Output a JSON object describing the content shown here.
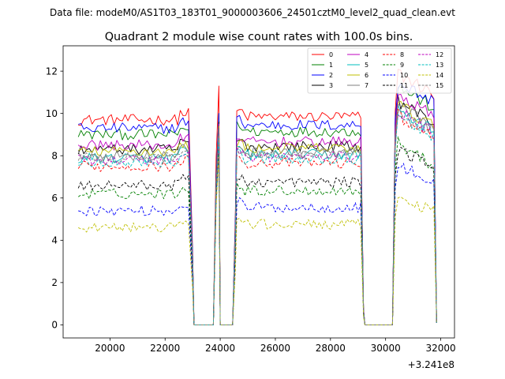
{
  "chart_data": {
    "type": "line",
    "suptitle": "Data file: modeM0/AS1T03_183T01_9000003606_24501cztM0_level2_quad_clean.evt",
    "title": "Quadrant 2 module wise count rates with 100.0s bins.",
    "xlabel": "",
    "ylabel": "",
    "offset_text": "+3.241e8",
    "xlim": [
      18300,
      32500
    ],
    "ylim": [
      -0.62,
      13.2
    ],
    "grid": false,
    "legend_position": "top-right",
    "legend_ncol": 4,
    "x_ticks": [
      20000,
      22000,
      24000,
      26000,
      28000,
      30000,
      32000
    ],
    "x_tick_labels": [
      "20000",
      "22000",
      "24000",
      "26000",
      "28000",
      "30000",
      "32000"
    ],
    "y_ticks": [
      0,
      2,
      4,
      6,
      8,
      10,
      12
    ],
    "y_tick_labels": [
      "0",
      "2",
      "4",
      "6",
      "8",
      "10",
      "12"
    ],
    "segments": [
      {
        "x_start": 18850,
        "x_end": 22850,
        "ramp_end": 23050
      },
      {
        "x_start": 23750,
        "x_end": 23950,
        "ramp_end": 24000
      },
      {
        "x_start": 24600,
        "x_end": 29100,
        "ramp_end": 29250
      },
      {
        "x_start": 30300,
        "x_end": 31750,
        "ramp_end": 31850
      }
    ],
    "zero_gaps": [
      [
        23050,
        23750
      ],
      [
        24000,
        24450
      ],
      [
        29250,
        30250
      ]
    ],
    "series": [
      {
        "name": "0",
        "color": "#ff0000",
        "dash": "solid",
        "level": 9.7,
        "spike": 11.3,
        "final_level": 11.9
      },
      {
        "name": "1",
        "color": "#008000",
        "dash": "solid",
        "level": 9.0,
        "spike": 10.0,
        "final_level": 11.3
      },
      {
        "name": "2",
        "color": "#0000ff",
        "dash": "solid",
        "level": 9.3,
        "spike": 10.0,
        "final_level": 11.5
      },
      {
        "name": "3",
        "color": "#000000",
        "dash": "solid",
        "level": 8.3,
        "spike": 9.6,
        "final_level": 10.6
      },
      {
        "name": "4",
        "color": "#bf00bf",
        "dash": "solid",
        "level": 8.5,
        "spike": 9.5,
        "final_level": 10.9
      },
      {
        "name": "5",
        "color": "#00bfbf",
        "dash": "solid",
        "level": 7.9,
        "spike": 9.2,
        "final_level": 10.2
      },
      {
        "name": "6",
        "color": "#bfbf00",
        "dash": "solid",
        "level": 8.2,
        "spike": 9.4,
        "final_level": 10.4
      },
      {
        "name": "7",
        "color": "#808080",
        "dash": "solid",
        "level": 8.0,
        "spike": 9.3,
        "final_level": 10.3
      },
      {
        "name": "8",
        "color": "#ff0000",
        "dash": "dashed",
        "level": 7.5,
        "spike": 9.0,
        "final_level": 9.9
      },
      {
        "name": "9",
        "color": "#008000",
        "dash": "dashed",
        "level": 6.2,
        "spike": 8.5,
        "final_level": 8.6
      },
      {
        "name": "10",
        "color": "#0000ff",
        "dash": "dashed",
        "level": 5.4,
        "spike": 8.3,
        "final_level": 7.6
      },
      {
        "name": "11",
        "color": "#000000",
        "dash": "dashed",
        "level": 6.6,
        "spike": 8.6,
        "final_level": 8.3
      },
      {
        "name": "12",
        "color": "#bf00bf",
        "dash": "dashed",
        "level": 7.8,
        "spike": 9.1,
        "final_level": 10.1
      },
      {
        "name": "13",
        "color": "#00bfbf",
        "dash": "dashed",
        "level": 7.7,
        "spike": 9.0,
        "final_level": 9.8
      },
      {
        "name": "14",
        "color": "#bfbf00",
        "dash": "dashed",
        "level": 4.6,
        "spike": 8.0,
        "final_level": 6.0
      },
      {
        "name": "15",
        "color": "#808080",
        "dash": "dashed",
        "level": 7.9,
        "spike": 9.2,
        "final_level": 9.9
      }
    ]
  }
}
